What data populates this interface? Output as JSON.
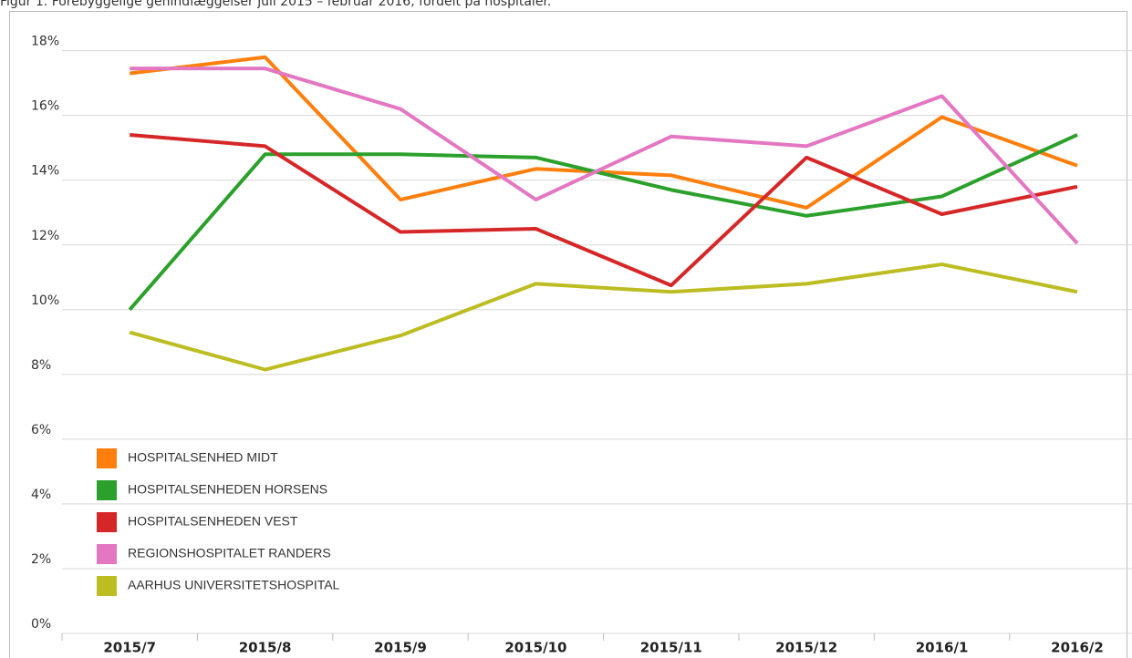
{
  "chart_data": {
    "type": "line",
    "title": "Figur 1. Forebyggelige genindlæggelser juli 2015 – februar 2016, fordelt på hospitaler.",
    "categories": [
      "2015/7",
      "2015/8",
      "2015/9",
      "2015/10",
      "2015/11",
      "2015/12",
      "2016/1",
      "2016/2"
    ],
    "series": [
      {
        "name": "HOSPITALSENHED MIDT",
        "color": "#ff7f0e",
        "values": [
          17.3,
          17.8,
          13.4,
          14.35,
          14.15,
          13.15,
          15.95,
          14.45
        ]
      },
      {
        "name": "HOSPITALSENHEDEN HORSENS",
        "color": "#2ca02c",
        "values": [
          10.0,
          14.8,
          14.8,
          14.7,
          13.7,
          12.9,
          13.5,
          15.4
        ]
      },
      {
        "name": "HOSPITALSENHEDEN VEST",
        "color": "#d62728",
        "values": [
          15.4,
          15.05,
          12.4,
          12.5,
          10.75,
          14.7,
          12.95,
          13.8
        ]
      },
      {
        "name": "REGIONSHOSPITALET RANDERS",
        "color": "#e377c2",
        "values": [
          17.45,
          17.45,
          16.2,
          13.4,
          15.35,
          15.05,
          16.6,
          12.05
        ]
      },
      {
        "name": "AARHUS UNIVERSITETSHOSPITAL",
        "color": "#bcbd22",
        "values": [
          9.3,
          8.15,
          9.2,
          10.8,
          10.55,
          10.8,
          11.4,
          10.55
        ]
      }
    ],
    "ylim": [
      0,
      19.2
    ],
    "yticks": [
      {
        "value": 0,
        "label": "0%"
      },
      {
        "value": 2,
        "label": "2%"
      },
      {
        "value": 4,
        "label": "4%"
      },
      {
        "value": 6,
        "label": "6%"
      },
      {
        "value": 8,
        "label": "8%"
      },
      {
        "value": 10,
        "label": "10%"
      },
      {
        "value": 12,
        "label": "12%"
      },
      {
        "value": 14,
        "label": "14%"
      },
      {
        "value": 16,
        "label": "16%"
      },
      {
        "value": 18,
        "label": "18%"
      }
    ],
    "grid": true
  }
}
